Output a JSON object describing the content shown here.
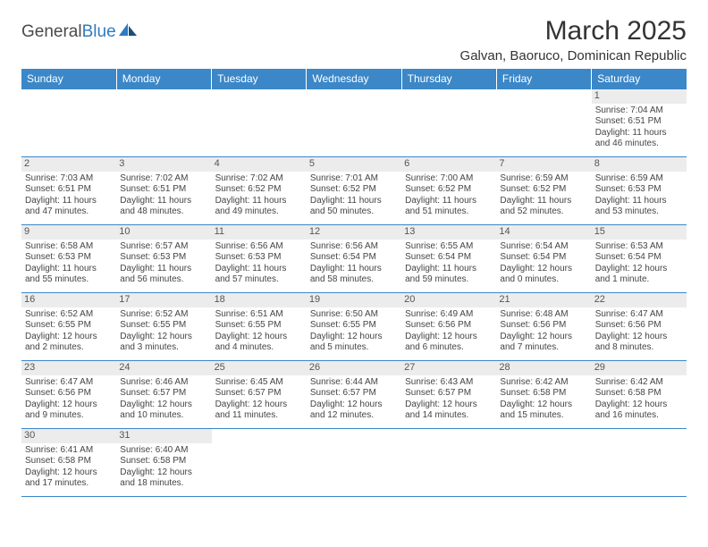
{
  "logo": {
    "text_a": "General",
    "text_b": "Blue"
  },
  "title": "March 2025",
  "location": "Galvan, Baoruco, Dominican Republic",
  "colors": {
    "header_bg": "#3b87c8",
    "header_text": "#ffffff",
    "grid_line": "#3b87c8",
    "daynum_bg": "#ececec",
    "body_text": "#444444"
  },
  "day_headers": [
    "Sunday",
    "Monday",
    "Tuesday",
    "Wednesday",
    "Thursday",
    "Friday",
    "Saturday"
  ],
  "weeks": [
    [
      null,
      null,
      null,
      null,
      null,
      null,
      {
        "n": "1",
        "sr": "Sunrise: 7:04 AM",
        "ss": "Sunset: 6:51 PM",
        "dl": "Daylight: 11 hours and 46 minutes."
      }
    ],
    [
      {
        "n": "2",
        "sr": "Sunrise: 7:03 AM",
        "ss": "Sunset: 6:51 PM",
        "dl": "Daylight: 11 hours and 47 minutes."
      },
      {
        "n": "3",
        "sr": "Sunrise: 7:02 AM",
        "ss": "Sunset: 6:51 PM",
        "dl": "Daylight: 11 hours and 48 minutes."
      },
      {
        "n": "4",
        "sr": "Sunrise: 7:02 AM",
        "ss": "Sunset: 6:52 PM",
        "dl": "Daylight: 11 hours and 49 minutes."
      },
      {
        "n": "5",
        "sr": "Sunrise: 7:01 AM",
        "ss": "Sunset: 6:52 PM",
        "dl": "Daylight: 11 hours and 50 minutes."
      },
      {
        "n": "6",
        "sr": "Sunrise: 7:00 AM",
        "ss": "Sunset: 6:52 PM",
        "dl": "Daylight: 11 hours and 51 minutes."
      },
      {
        "n": "7",
        "sr": "Sunrise: 6:59 AM",
        "ss": "Sunset: 6:52 PM",
        "dl": "Daylight: 11 hours and 52 minutes."
      },
      {
        "n": "8",
        "sr": "Sunrise: 6:59 AM",
        "ss": "Sunset: 6:53 PM",
        "dl": "Daylight: 11 hours and 53 minutes."
      }
    ],
    [
      {
        "n": "9",
        "sr": "Sunrise: 6:58 AM",
        "ss": "Sunset: 6:53 PM",
        "dl": "Daylight: 11 hours and 55 minutes."
      },
      {
        "n": "10",
        "sr": "Sunrise: 6:57 AM",
        "ss": "Sunset: 6:53 PM",
        "dl": "Daylight: 11 hours and 56 minutes."
      },
      {
        "n": "11",
        "sr": "Sunrise: 6:56 AM",
        "ss": "Sunset: 6:53 PM",
        "dl": "Daylight: 11 hours and 57 minutes."
      },
      {
        "n": "12",
        "sr": "Sunrise: 6:56 AM",
        "ss": "Sunset: 6:54 PM",
        "dl": "Daylight: 11 hours and 58 minutes."
      },
      {
        "n": "13",
        "sr": "Sunrise: 6:55 AM",
        "ss": "Sunset: 6:54 PM",
        "dl": "Daylight: 11 hours and 59 minutes."
      },
      {
        "n": "14",
        "sr": "Sunrise: 6:54 AM",
        "ss": "Sunset: 6:54 PM",
        "dl": "Daylight: 12 hours and 0 minutes."
      },
      {
        "n": "15",
        "sr": "Sunrise: 6:53 AM",
        "ss": "Sunset: 6:54 PM",
        "dl": "Daylight: 12 hours and 1 minute."
      }
    ],
    [
      {
        "n": "16",
        "sr": "Sunrise: 6:52 AM",
        "ss": "Sunset: 6:55 PM",
        "dl": "Daylight: 12 hours and 2 minutes."
      },
      {
        "n": "17",
        "sr": "Sunrise: 6:52 AM",
        "ss": "Sunset: 6:55 PM",
        "dl": "Daylight: 12 hours and 3 minutes."
      },
      {
        "n": "18",
        "sr": "Sunrise: 6:51 AM",
        "ss": "Sunset: 6:55 PM",
        "dl": "Daylight: 12 hours and 4 minutes."
      },
      {
        "n": "19",
        "sr": "Sunrise: 6:50 AM",
        "ss": "Sunset: 6:55 PM",
        "dl": "Daylight: 12 hours and 5 minutes."
      },
      {
        "n": "20",
        "sr": "Sunrise: 6:49 AM",
        "ss": "Sunset: 6:56 PM",
        "dl": "Daylight: 12 hours and 6 minutes."
      },
      {
        "n": "21",
        "sr": "Sunrise: 6:48 AM",
        "ss": "Sunset: 6:56 PM",
        "dl": "Daylight: 12 hours and 7 minutes."
      },
      {
        "n": "22",
        "sr": "Sunrise: 6:47 AM",
        "ss": "Sunset: 6:56 PM",
        "dl": "Daylight: 12 hours and 8 minutes."
      }
    ],
    [
      {
        "n": "23",
        "sr": "Sunrise: 6:47 AM",
        "ss": "Sunset: 6:56 PM",
        "dl": "Daylight: 12 hours and 9 minutes."
      },
      {
        "n": "24",
        "sr": "Sunrise: 6:46 AM",
        "ss": "Sunset: 6:57 PM",
        "dl": "Daylight: 12 hours and 10 minutes."
      },
      {
        "n": "25",
        "sr": "Sunrise: 6:45 AM",
        "ss": "Sunset: 6:57 PM",
        "dl": "Daylight: 12 hours and 11 minutes."
      },
      {
        "n": "26",
        "sr": "Sunrise: 6:44 AM",
        "ss": "Sunset: 6:57 PM",
        "dl": "Daylight: 12 hours and 12 minutes."
      },
      {
        "n": "27",
        "sr": "Sunrise: 6:43 AM",
        "ss": "Sunset: 6:57 PM",
        "dl": "Daylight: 12 hours and 14 minutes."
      },
      {
        "n": "28",
        "sr": "Sunrise: 6:42 AM",
        "ss": "Sunset: 6:58 PM",
        "dl": "Daylight: 12 hours and 15 minutes."
      },
      {
        "n": "29",
        "sr": "Sunrise: 6:42 AM",
        "ss": "Sunset: 6:58 PM",
        "dl": "Daylight: 12 hours and 16 minutes."
      }
    ],
    [
      {
        "n": "30",
        "sr": "Sunrise: 6:41 AM",
        "ss": "Sunset: 6:58 PM",
        "dl": "Daylight: 12 hours and 17 minutes."
      },
      {
        "n": "31",
        "sr": "Sunrise: 6:40 AM",
        "ss": "Sunset: 6:58 PM",
        "dl": "Daylight: 12 hours and 18 minutes."
      },
      null,
      null,
      null,
      null,
      null
    ]
  ]
}
